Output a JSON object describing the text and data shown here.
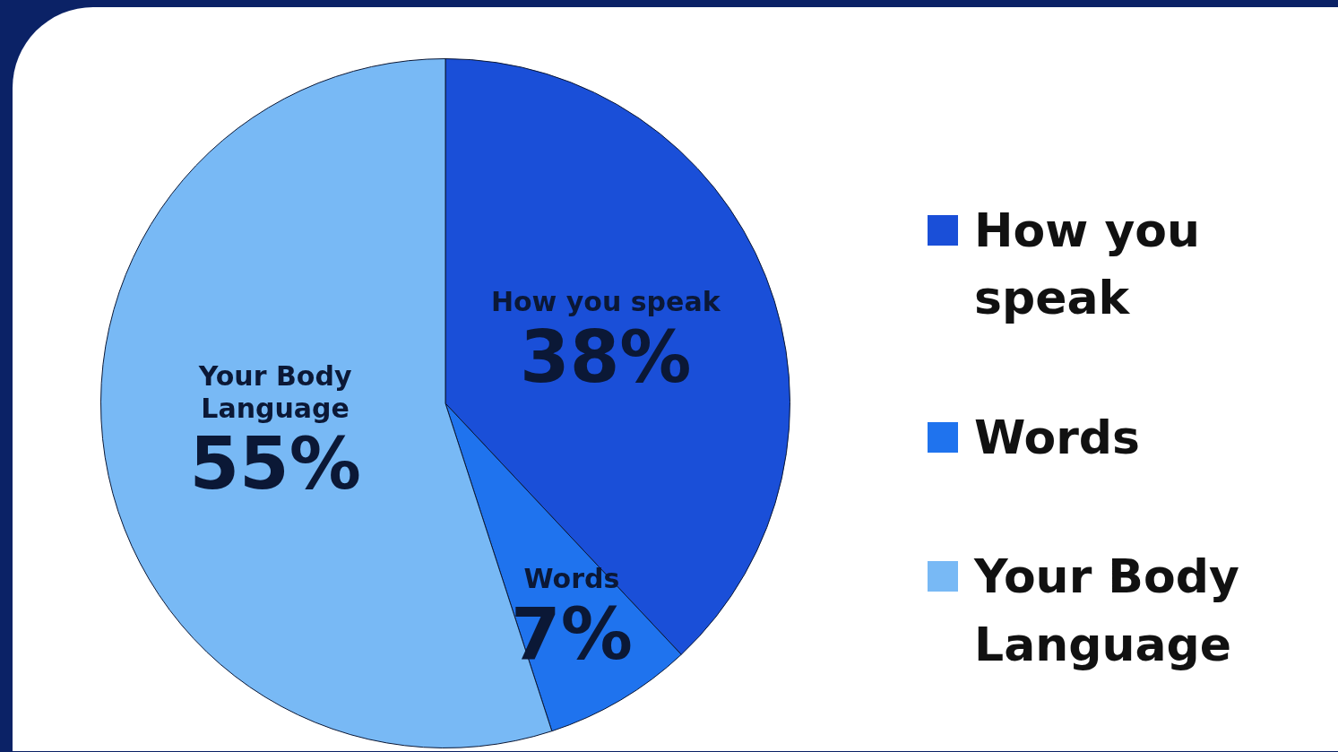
{
  "chart_data": {
    "type": "pie",
    "categories": [
      "How you speak",
      "Words",
      "Your Body Language"
    ],
    "values": [
      38,
      7,
      55
    ],
    "value_labels": [
      "38%",
      "7%",
      "55%"
    ],
    "colors": [
      "#1a4fd8",
      "#1f73ee",
      "#78b9f5"
    ],
    "legend": "right"
  }
}
